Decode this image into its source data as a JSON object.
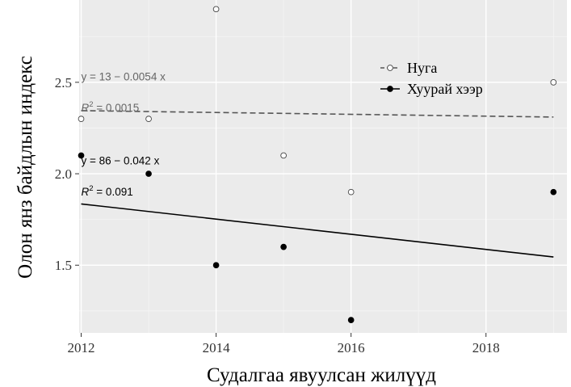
{
  "chart_data": {
    "type": "scatter",
    "xlabel": "Судалгаа явуулсан жилүүд",
    "ylabel": "Олон янз байдлын индекс",
    "xlim": [
      2011.97,
      2019.2
    ],
    "ylim": [
      1.13,
      2.95
    ],
    "x_ticks": [
      2012,
      2014,
      2016,
      2018
    ],
    "x_tick_labels": [
      "2012",
      "2014",
      "2016",
      "2018"
    ],
    "y_ticks": [
      1.5,
      2.0,
      2.5
    ],
    "y_tick_labels": [
      "1.5",
      "2.0",
      "2.5"
    ],
    "grid": true,
    "legend_position": "top-right",
    "series": [
      {
        "name": "Нуга",
        "marker": "open-circle",
        "line_style": "dashed",
        "color": "#555555",
        "points": [
          {
            "x": 2012,
            "y": 2.3
          },
          {
            "x": 2013,
            "y": 2.3
          },
          {
            "x": 2014,
            "y": 2.9
          },
          {
            "x": 2015,
            "y": 2.1
          },
          {
            "x": 2016,
            "y": 1.9
          },
          {
            "x": 2019,
            "y": 2.5
          }
        ],
        "fit": {
          "x": [
            2012,
            2019
          ],
          "y": [
            2.345,
            2.31
          ]
        },
        "equation": "y = 13 − 0.0054 x",
        "r2_label": "R",
        "r2_sup": "2",
        "r2_value": " = 0.0015"
      },
      {
        "name": "Хуурай хээр",
        "marker": "filled-circle",
        "line_style": "solid",
        "color": "#000000",
        "points": [
          {
            "x": 2012,
            "y": 2.1
          },
          {
            "x": 2013,
            "y": 2.0
          },
          {
            "x": 2014,
            "y": 1.5
          },
          {
            "x": 2015,
            "y": 1.6
          },
          {
            "x": 2016,
            "y": 1.2
          },
          {
            "x": 2019,
            "y": 1.9
          }
        ],
        "fit": {
          "x": [
            2012,
            2019
          ],
          "y": [
            1.835,
            1.545
          ]
        },
        "equation": "y = 86 − 0.042 x",
        "r2_label": "R",
        "r2_sup": "2",
        "r2_value": " = 0.091"
      }
    ]
  }
}
